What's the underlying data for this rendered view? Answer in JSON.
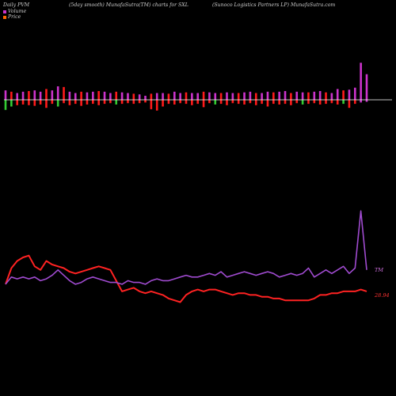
{
  "header": {
    "left": "Daily PVM",
    "middle": "(5day smooth) MunafaSutra(TM) charts for SXL",
    "right": "(Sunoco  Logistics Partners LP) MunafaSutra.com"
  },
  "legend": {
    "volume_label": "Volume",
    "price_label": "Price",
    "volume_color": "#cc33cc",
    "price_color": "#ff6600"
  },
  "colors": {
    "up_bar": "#ff1a1a",
    "down_bar": "#33cc33",
    "volume_bar": "#cc33cc",
    "price_line": "#ff2222",
    "volume_line": "#a04bd0",
    "baseline": "#ffffff"
  },
  "chart_data": [
    {
      "type": "bar",
      "title": "",
      "series": [
        {
          "values": [
            1.4,
            1.2,
            1.0,
            1.2,
            1.3,
            1.4,
            1.2,
            1.6,
            1.4,
            2.0,
            1.9,
            1.2,
            1.0,
            1.2,
            1.1,
            1.2,
            1.3,
            1.2,
            1.0,
            1.2,
            1.1,
            1.0,
            0.9,
            0.8,
            0.6,
            0.9,
            1.0,
            1.0,
            0.9,
            1.2,
            1.0,
            1.1,
            1.0,
            1.0,
            1.2,
            1.1,
            1.0,
            1.0,
            1.1,
            1.0,
            1.0,
            1.1,
            1.2,
            1.0,
            1.0,
            1.2,
            1.1,
            1.2,
            1.3,
            1.0,
            1.2,
            1.1,
            1.1,
            1.2,
            1.3,
            1.1,
            1.0,
            1.6,
            1.4,
            1.5,
            1.8,
            5.5,
            3.8
          ]
        },
        {
          "values": [
            -1.5,
            -1.0,
            -0.8,
            -0.7,
            -0.8,
            -0.9,
            -0.7,
            -1.2,
            -0.6,
            -1.0,
            -0.5,
            -0.8,
            -0.6,
            -0.9,
            -0.7,
            -0.6,
            -0.8,
            -0.6,
            -0.5,
            -0.7,
            -0.6,
            -0.5,
            -0.6,
            -0.5,
            -0.4,
            -1.4,
            -1.6,
            -1.0,
            -0.6,
            -0.7,
            -0.5,
            -0.6,
            -0.8,
            -0.6,
            -1.1,
            -0.5,
            -0.7,
            -0.6,
            -0.8,
            -0.5,
            -0.6,
            -0.7,
            -0.5,
            -0.8,
            -0.6,
            -1.0,
            -0.6,
            -0.7,
            -0.6,
            -0.8,
            -0.5,
            -0.7,
            -0.6,
            -0.5,
            -0.7,
            -0.6,
            -0.5,
            -0.7,
            -0.6,
            -1.2,
            -0.6,
            -0.4,
            -0.3
          ]
        }
      ]
    },
    {
      "type": "line",
      "title": "",
      "series": [
        {
          "values": [
            37.4,
            38.3,
            38.7,
            38.9,
            39.0,
            38.4,
            38.2,
            38.7,
            38.5,
            38.4,
            38.3,
            38.1,
            38.0,
            38.1,
            38.2,
            38.3,
            38.4,
            38.3,
            38.2,
            37.6,
            37.0,
            37.1,
            37.2,
            37.0,
            36.9,
            37.0,
            36.9,
            36.8,
            36.6,
            36.5,
            36.4,
            36.8,
            37.0,
            37.1,
            37.0,
            37.1,
            37.1,
            37.0,
            36.9,
            36.8,
            36.9,
            36.9,
            36.8,
            36.8,
            36.7,
            36.7,
            36.6,
            36.6,
            36.5,
            36.5,
            36.5,
            36.5,
            36.5,
            36.6,
            36.8,
            36.8,
            36.9,
            36.9,
            37.0,
            37.0,
            37.0,
            37.1,
            37.0
          ]
        },
        {
          "values": [
            37.4,
            37.8,
            37.7,
            37.8,
            37.7,
            37.8,
            37.6,
            37.7,
            37.9,
            38.2,
            37.9,
            37.6,
            37.4,
            37.5,
            37.7,
            37.8,
            37.7,
            37.6,
            37.5,
            37.5,
            37.4,
            37.6,
            37.5,
            37.5,
            37.4,
            37.6,
            37.7,
            37.6,
            37.6,
            37.7,
            37.8,
            37.9,
            37.8,
            37.8,
            37.9,
            38.0,
            37.9,
            38.1,
            37.8,
            37.9,
            38.0,
            38.1,
            38.0,
            37.9,
            38.0,
            38.1,
            38.0,
            37.8,
            37.9,
            38.0,
            37.9,
            38.0,
            38.3,
            37.8,
            38.0,
            38.2,
            38.0,
            38.2,
            38.4,
            38.0,
            38.3,
            41.5,
            38.2
          ]
        }
      ],
      "end_labels": {
        "volume": "TM",
        "price": "28.94"
      }
    }
  ]
}
